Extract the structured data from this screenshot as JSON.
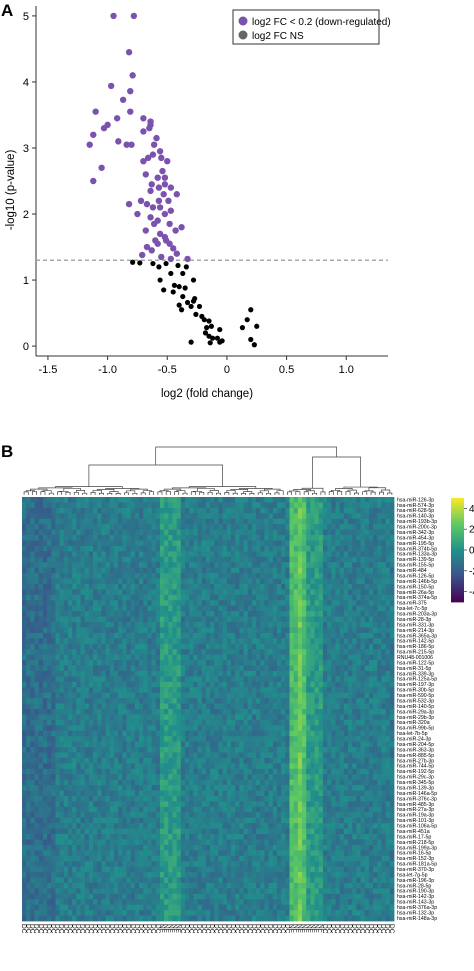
{
  "panelA": {
    "label": "A",
    "chart_data": {
      "type": "scatter",
      "xlabel": "log2 (fold change)",
      "ylabel": "-log10 (p-value)",
      "xlim": [
        -1.6,
        1.35
      ],
      "ylim": [
        -0.15,
        5.15
      ],
      "xticks": [
        -1.5,
        -1.0,
        -0.5,
        0,
        0.5,
        1.0
      ],
      "xtick_labels": [
        "-1.5",
        "-1.0",
        "-0.5",
        "0",
        "0.5",
        "1.0"
      ],
      "yticks": [
        0,
        1,
        2,
        3,
        4,
        5
      ],
      "ytick_labels": [
        "0",
        "1",
        "2",
        "3",
        "4",
        "5"
      ],
      "threshold_y": 1.3,
      "legend_position": "top-right",
      "series": [
        {
          "name": "log2 FC < 0.2 (down-regulated)",
          "color": "#7b52ae",
          "points": [
            [
              -0.95,
              5.0
            ],
            [
              -0.78,
              5.0
            ],
            [
              -0.82,
              4.45
            ],
            [
              -0.79,
              4.1
            ],
            [
              -0.97,
              3.94
            ],
            [
              -0.81,
              3.86
            ],
            [
              -0.87,
              3.73
            ],
            [
              -1.1,
              3.55
            ],
            [
              -0.81,
              3.55
            ],
            [
              -0.64,
              3.4
            ],
            [
              -0.7,
              3.45
            ],
            [
              -0.92,
              3.45
            ],
            [
              -0.64,
              3.35
            ],
            [
              -1.0,
              3.35
            ],
            [
              -1.03,
              3.3
            ],
            [
              -0.65,
              3.3
            ],
            [
              -0.7,
              3.25
            ],
            [
              -1.12,
              3.2
            ],
            [
              -0.59,
              3.15
            ],
            [
              -0.91,
              3.1
            ],
            [
              -0.61,
              3.05
            ],
            [
              -0.84,
              3.05
            ],
            [
              -1.15,
              3.05
            ],
            [
              -0.8,
              3.05
            ],
            [
              -0.56,
              2.95
            ],
            [
              -0.62,
              2.9
            ],
            [
              -0.55,
              2.85
            ],
            [
              -0.66,
              2.85
            ],
            [
              -0.5,
              2.8
            ],
            [
              -0.7,
              2.8
            ],
            [
              -1.05,
              2.7
            ],
            [
              -0.54,
              2.65
            ],
            [
              -0.68,
              2.6
            ],
            [
              -0.52,
              2.55
            ],
            [
              -1.12,
              2.5
            ],
            [
              -0.58,
              2.55
            ],
            [
              -0.63,
              2.45
            ],
            [
              -0.52,
              2.45
            ],
            [
              -0.57,
              2.4
            ],
            [
              -0.47,
              2.4
            ],
            [
              -0.64,
              2.35
            ],
            [
              -0.53,
              2.3
            ],
            [
              -0.42,
              2.3
            ],
            [
              -0.72,
              2.2
            ],
            [
              -0.57,
              2.2
            ],
            [
              -0.49,
              2.2
            ],
            [
              -0.82,
              2.15
            ],
            [
              -0.67,
              2.15
            ],
            [
              -0.62,
              2.1
            ],
            [
              -0.56,
              2.1
            ],
            [
              -0.47,
              2.05
            ],
            [
              -0.75,
              2.0
            ],
            [
              -0.52,
              2.0
            ],
            [
              -0.64,
              1.95
            ],
            [
              -0.58,
              1.9
            ],
            [
              -0.48,
              1.85
            ],
            [
              -0.61,
              1.85
            ],
            [
              -0.38,
              1.8
            ],
            [
              -0.68,
              1.75
            ],
            [
              -0.43,
              1.75
            ],
            [
              -0.56,
              1.7
            ],
            [
              -0.52,
              1.65
            ],
            [
              -0.6,
              1.6
            ],
            [
              -0.51,
              1.6
            ],
            [
              -0.58,
              1.55
            ],
            [
              -0.48,
              1.55
            ],
            [
              -0.67,
              1.5
            ],
            [
              -0.45,
              1.48
            ],
            [
              -0.63,
              1.45
            ],
            [
              -0.42,
              1.4
            ],
            [
              -0.71,
              1.38
            ],
            [
              -0.55,
              1.35
            ],
            [
              -0.47,
              1.32
            ],
            [
              -0.33,
              1.32
            ]
          ]
        },
        {
          "name": "log2 FC NS",
          "color": "#000000",
          "points": [
            [
              -0.79,
              1.27
            ],
            [
              -0.73,
              1.26
            ],
            [
              -0.62,
              1.25
            ],
            [
              -0.51,
              1.25
            ],
            [
              -0.41,
              1.22
            ],
            [
              -0.57,
              1.2
            ],
            [
              -0.34,
              1.2
            ],
            [
              -0.47,
              1.1
            ],
            [
              -0.37,
              1.1
            ],
            [
              -0.56,
              1.0
            ],
            [
              -0.28,
              1.0
            ],
            [
              -0.44,
              0.92
            ],
            [
              -0.4,
              0.9
            ],
            [
              -0.35,
              0.88
            ],
            [
              -0.53,
              0.85
            ],
            [
              -0.45,
              0.82
            ],
            [
              -0.37,
              0.75
            ],
            [
              -0.27,
              0.72
            ],
            [
              -0.28,
              0.68
            ],
            [
              -0.33,
              0.66
            ],
            [
              -0.4,
              0.62
            ],
            [
              -0.3,
              0.6
            ],
            [
              -0.23,
              0.6
            ],
            [
              -0.38,
              0.55
            ],
            [
              -0.26,
              0.48
            ],
            [
              -0.21,
              0.45
            ],
            [
              -0.19,
              0.4
            ],
            [
              -0.15,
              0.38
            ],
            [
              0.2,
              0.55
            ],
            [
              0.17,
              0.4
            ],
            [
              0.25,
              0.3
            ],
            [
              0.13,
              0.28
            ],
            [
              -0.13,
              0.3
            ],
            [
              -0.17,
              0.28
            ],
            [
              -0.06,
              0.25
            ],
            [
              -0.18,
              0.2
            ],
            [
              -0.15,
              0.15
            ],
            [
              -0.12,
              0.12
            ],
            [
              -0.08,
              0.12
            ],
            [
              -0.04,
              0.08
            ],
            [
              0.2,
              0.1
            ],
            [
              -0.3,
              0.06
            ],
            [
              -0.14,
              0.05
            ],
            [
              -0.06,
              0.06
            ],
            [
              0.23,
              0.02
            ]
          ]
        }
      ]
    }
  },
  "panelB": {
    "label": "B",
    "chart_data": {
      "type": "heatmap",
      "rows": [
        "hsa-miR-126-3p",
        "hsa-miR-574-3p",
        "hsa-miR-628-5p",
        "hsa-miR-140-3p",
        "hsa-miR-193b-3p",
        "hsa-miR-200c-3p",
        "hsa-miR-342-3p",
        "hsa-miR-454-3p",
        "hsa-miR-195-5p",
        "hsa-miR-374b-5p",
        "hsa-miR-133a-3p",
        "hsa-miR-139-5p",
        "hsa-miR-155-5p",
        "hsa-miR-484",
        "hsa-miR-126-5p",
        "hsa-miR-146b-5p",
        "hsa-miR-150-5p",
        "hsa-miR-26a-5p",
        "hsa-miR-374a-5p",
        "hsa-miR-375",
        "hsa-let-7c-5p",
        "hsa-miR-203a-3p",
        "hsa-miR-28-3p",
        "hsa-miR-331-3p",
        "hsa-miR-214-3p",
        "hsa-miR-365a-3p",
        "hsa-miR-142-5p",
        "hsa-miR-186-5p",
        "hsa-miR-215-5p",
        "RNU48-001006",
        "hsa-miR-122-5p",
        "hsa-miR-31-5p",
        "hsa-miR-339-3p",
        "hsa-miR-125a-5p",
        "hsa-miR-197-3p",
        "hsa-miR-30b-5p",
        "hsa-miR-590-5p",
        "hsa-miR-532-3p",
        "hsa-miR-140-5p",
        "hsa-miR-29a-3p",
        "hsa-miR-29b-3p",
        "hsa-miR-320a",
        "hsa-miR-99b-5p",
        "hsa-let-7b-5p",
        "hsa-miR-24-3p",
        "hsa-miR-204-5p",
        "hsa-miR-363-3p",
        "hsa-miR-885-5p",
        "hsa-miR-27b-3p",
        "hsa-miR-744-5p",
        "hsa-miR-192-5p",
        "hsa-miR-29c-3p",
        "hsa-miR-345-5p",
        "hsa-miR-139-3p",
        "hsa-miR-146a-5p",
        "hsa-miR-376c-3p",
        "hsa-miR-485-3p",
        "hsa-miR-27a-3p",
        "hsa-miR-19a-3p",
        "hsa-miR-101-3p",
        "hsa-miR-106a-5p",
        "hsa-miR-451a",
        "hsa-miR-17-5p",
        "hsa-miR-218-5p",
        "hsa-miR-199a-3p",
        "hsa-miR-16-5p",
        "hsa-miR-152-3p",
        "hsa-miR-181a-5p",
        "hsa-miR-370-3p",
        "hsa-let-7g-5p",
        "hsa-miR-196-3p",
        "hsa-miR-28-5p",
        "hsa-miR-190-3p",
        "hsa-miR-142-3p",
        "hsa-miR-143-3p",
        "hsa-miR-376a-3p",
        "hsa-miR-132-3p",
        "hsa-miR-148a-3p"
      ],
      "columns": [
        "DC",
        "DC",
        "DC",
        "DC",
        "DC",
        "DC",
        "DC",
        "DC",
        "DC",
        "DC",
        "DC",
        "DC",
        "DC",
        "DC",
        "DC",
        "DC",
        "DC",
        "DC",
        "DC",
        "DC",
        "DC",
        "DC",
        "DC",
        "DC",
        "DC",
        "DC",
        "DC",
        "DC",
        "DC",
        "DC",
        "DC",
        "DC",
        "DC",
        "NF",
        "NF",
        "NF",
        "NF",
        "NF",
        "DC",
        "DC",
        "DC",
        "DC",
        "DC",
        "DC",
        "DC",
        "DC",
        "DC",
        "DC",
        "DC",
        "DC",
        "DC",
        "DC",
        "DC",
        "DC",
        "DC",
        "DC",
        "DC",
        "DC",
        "DC",
        "DC",
        "DC",
        "DC",
        "DC",
        "DC",
        "NF",
        "NF",
        "NF",
        "NF",
        "NF",
        "NF",
        "NF",
        "NF",
        "DC",
        "DC",
        "DC",
        "DC",
        "DC",
        "DC",
        "DC",
        "DC",
        "DC",
        "DC",
        "DC",
        "DC",
        "DC",
        "DC",
        "DC",
        "DC",
        "DC"
      ],
      "colorbar_ticks": [
        4,
        2,
        0,
        -2,
        -4
      ],
      "colorbar_labels": [
        "4",
        "2",
        "0",
        "-2",
        "-4"
      ],
      "vmin": -5,
      "vmax": 5,
      "colormap": [
        "#440154",
        "#3b528b",
        "#21918c",
        "#5ec962",
        "#fde725"
      ]
    }
  }
}
